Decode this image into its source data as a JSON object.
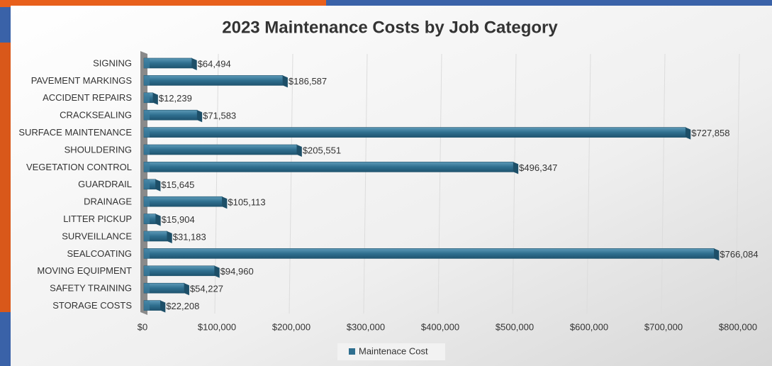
{
  "chart_data": {
    "type": "bar",
    "orientation": "horizontal",
    "title": "2023 Maintenance Costs by Job Category",
    "categories": [
      "SIGNING",
      "PAVEMENT MARKINGS",
      "ACCIDENT REPAIRS",
      "CRACKSEALING",
      "SURFACE MAINTENANCE",
      "SHOULDERING",
      "VEGETATION CONTROL",
      "GUARDRAIL",
      "DRAINAGE",
      "LITTER PICKUP",
      "SURVEILLANCE",
      "SEALCOATING",
      "MOVING EQUIPMENT",
      "SAFETY TRAINING",
      "STORAGE COSTS"
    ],
    "series": [
      {
        "name": "Maintenace Cost",
        "color": "#2f6f8f",
        "values": [
          64494,
          186587,
          12239,
          71583,
          727858,
          205551,
          496347,
          15645,
          105113,
          15904,
          31183,
          766084,
          94960,
          54227,
          22208
        ],
        "value_labels": [
          "$64,494",
          "$186,587",
          "$12,239",
          "$71,583",
          "$727,858",
          "$205,551",
          "$496,347",
          "$15,645",
          "$105,113",
          "$15,904",
          "$31,183",
          "$766,084",
          "$94,960",
          "$54,227",
          "$22,208"
        ]
      }
    ],
    "xlim": [
      0,
      800000
    ],
    "xticks": [
      {
        "value": 0,
        "label": "$0"
      },
      {
        "value": 100000,
        "label": "$100,000"
      },
      {
        "value": 200000,
        "label": "$200,000"
      },
      {
        "value": 300000,
        "label": "$300,000"
      },
      {
        "value": 400000,
        "label": "$400,000"
      },
      {
        "value": 500000,
        "label": "$500,000"
      },
      {
        "value": 600000,
        "label": "$600,000"
      },
      {
        "value": 700000,
        "label": "$700,000"
      },
      {
        "value": 800000,
        "label": "$800,000"
      }
    ],
    "grid": true,
    "legend": "bottom"
  }
}
